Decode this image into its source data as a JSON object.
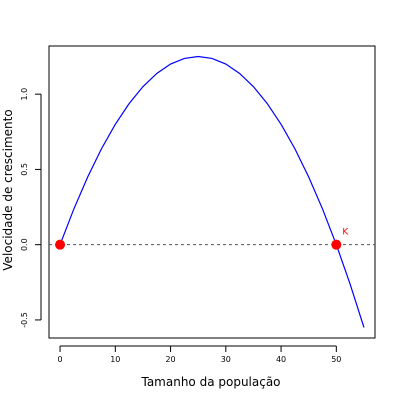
{
  "chart_data": {
    "type": "line",
    "title": "",
    "xlabel": "Tamanho da população",
    "ylabel": "Velocidade de crescimento",
    "xlim": [
      -2,
      57
    ],
    "ylim": [
      -0.62,
      1.32
    ],
    "x_ticks": [
      0,
      10,
      20,
      30,
      40,
      50
    ],
    "y_ticks": [
      -0.5,
      0.0,
      0.5,
      1.0
    ],
    "x_tick_labels": [
      "0",
      "10",
      "20",
      "30",
      "40",
      "50"
    ],
    "y_tick_labels": [
      "-0.5",
      "0.0",
      "0.5",
      "1.0"
    ],
    "grid": false,
    "curve": {
      "x": [
        0,
        2.5,
        5,
        7.5,
        10,
        12.5,
        15,
        17.5,
        20,
        22.5,
        25,
        27.5,
        30,
        32.5,
        35,
        37.5,
        40,
        42.5,
        45,
        47.5,
        50,
        52.5,
        55
      ],
      "y": [
        0.0,
        0.2375,
        0.45,
        0.6375,
        0.8,
        0.9375,
        1.05,
        1.1375,
        1.2,
        1.2375,
        1.25,
        1.2375,
        1.2,
        1.1375,
        1.05,
        0.9375,
        0.8,
        0.6375,
        0.45,
        0.2375,
        0.0,
        -0.2625,
        -0.55
      ],
      "color": "#0000ff"
    },
    "reference_line": {
      "y": 0.0,
      "style": "dashed",
      "color": "#555555"
    },
    "points": [
      {
        "x": 0,
        "y": 0.0,
        "label": ""
      },
      {
        "x": 50,
        "y": 0.0,
        "label": "K"
      }
    ],
    "point_color": "#ff0000"
  }
}
